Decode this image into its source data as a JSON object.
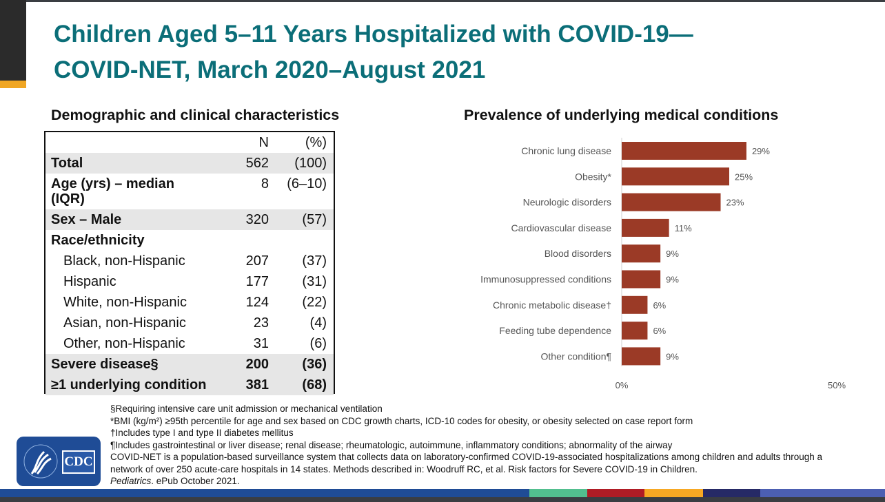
{
  "title": {
    "line1": "Children Aged 5–11 Years Hospitalized with COVID-19—",
    "line2": "COVID-NET, March 2020–August 2021"
  },
  "table": {
    "heading": "Demographic and clinical characteristics",
    "col_n": "N",
    "col_pct": "(%)",
    "rows": [
      {
        "label": "Total",
        "n": "562",
        "pct": "(100)"
      },
      {
        "label": "Age (yrs) – median (IQR)",
        "n": "8",
        "pct": "(6–10)"
      },
      {
        "label": "Sex – Male",
        "n": "320",
        "pct": "(57)"
      },
      {
        "label": "Race/ethnicity",
        "n": "",
        "pct": ""
      },
      {
        "label": "Black, non-Hispanic",
        "n": "207",
        "pct": "(37)"
      },
      {
        "label": "Hispanic",
        "n": "177",
        "pct": "(31)"
      },
      {
        "label": "White, non-Hispanic",
        "n": "124",
        "pct": "(22)"
      },
      {
        "label": "Asian, non-Hispanic",
        "n": "23",
        "pct": "(4)"
      },
      {
        "label": "Other, non-Hispanic",
        "n": "31",
        "pct": "(6)"
      },
      {
        "label": "Severe disease§",
        "n": "200",
        "pct": "(36)"
      },
      {
        "label": "≥1 underlying condition",
        "n": "381",
        "pct": "(68)"
      }
    ]
  },
  "chart_data": {
    "type": "bar",
    "orientation": "horizontal",
    "title": "Prevalence of underlying medical conditions",
    "categories": [
      "Chronic lung disease",
      "Obesity*",
      "Neurologic disorders",
      "Cardiovascular disease",
      "Blood disorders",
      "Immunosuppressed conditions",
      "Chronic metabolic disease†",
      "Feeding tube dependence",
      "Other condition¶"
    ],
    "values": [
      29,
      25,
      23,
      11,
      9,
      9,
      6,
      6,
      9
    ],
    "labels": [
      "29%",
      "25%",
      "23%",
      "11%",
      "9%",
      "9%",
      "6%",
      "6%",
      "9%"
    ],
    "xlim": [
      0,
      50
    ],
    "xticks": [
      "0%",
      "50%"
    ],
    "color": "#9b3a26"
  },
  "footnotes": [
    "§Requiring intensive care unit admission or mechanical ventilation",
    "*BMI (kg/m²) ≥95th percentile for age and sex based on CDC growth charts, ICD-10 codes for obesity, or obesity selected on case report form",
    "†Includes type I and type II diabetes mellitus",
    "¶Includes gastrointestinal or liver disease; renal disease; rheumatologic, autoimmune, inflammatory conditions; abnormality of the airway",
    "COVID-NET is a population-based surveillance system that collects data on laboratory-confirmed COVID-19-associated hospitalizations among children and adults through a network of over 250 acute-care hospitals in 14 states. Methods described in: Woodruff RC, et al. Risk factors for Severe COVID-19 in Children."
  ],
  "citation": {
    "journal": "Pediatrics",
    "rest": ". ePub October 2021."
  },
  "logo": {
    "text": "CDC"
  }
}
